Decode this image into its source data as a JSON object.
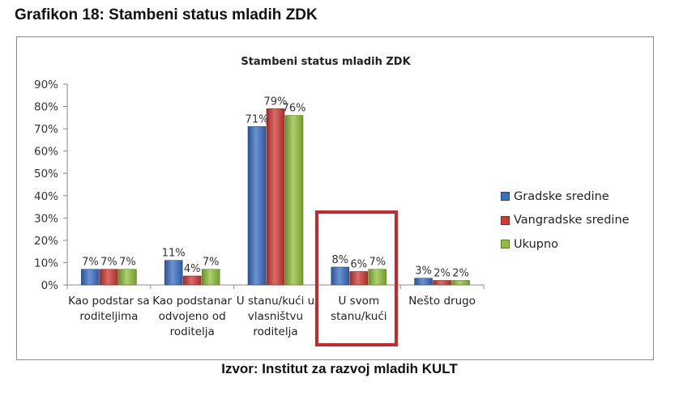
{
  "heading": "Grafikon 18: Stambeni status mladih ZDK",
  "source": "Izvor: Institut za razvoj mladih KULT",
  "chart_data": {
    "type": "bar",
    "title": "Stambeni status mladih ZDK",
    "categories": [
      [
        "Kao podstar sa",
        "roditeljima"
      ],
      [
        "Kao podstanar",
        "odvojeno od",
        "roditelja"
      ],
      [
        "U stanu/kući u",
        "vlasništvu",
        "roditelja"
      ],
      [
        "U svom",
        "stanu/kući"
      ],
      [
        "Nešto drugo"
      ]
    ],
    "series": [
      {
        "name": "Gradske sredine",
        "color": "#3a6fc4",
        "values": [
          7,
          11,
          71,
          8,
          3
        ]
      },
      {
        "name": "Vangradske sredine",
        "color": "#cf3a34",
        "values": [
          7,
          4,
          79,
          6,
          2
        ]
      },
      {
        "name": "Ukupno",
        "color": "#90c03a",
        "values": [
          7,
          7,
          76,
          7,
          2
        ]
      }
    ],
    "ylim": [
      0,
      90
    ],
    "yticks": [
      0,
      10,
      20,
      30,
      40,
      50,
      60,
      70,
      80,
      90
    ],
    "value_suffix": "%",
    "legend_position": "right",
    "grid": false,
    "highlighted_category": 3
  }
}
